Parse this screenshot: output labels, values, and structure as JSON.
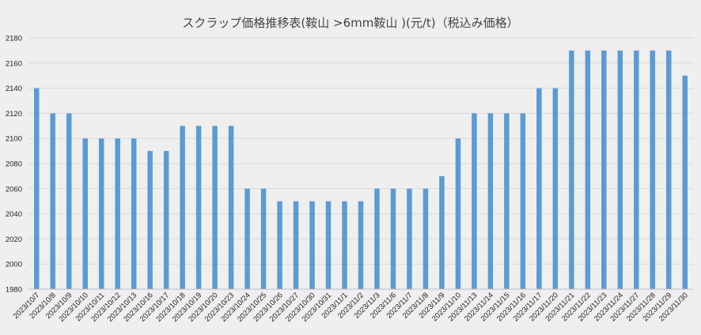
{
  "chart_data": {
    "type": "bar",
    "title": "スクラップ価格推移表(鞍山 >6mm鞍山 )(元/t)（税込み価格）",
    "xlabel": "",
    "ylabel": "",
    "ylim": [
      1980,
      2180
    ],
    "yticks": [
      1980,
      2000,
      2020,
      2040,
      2060,
      2080,
      2100,
      2120,
      2140,
      2160,
      2180
    ],
    "grid": true,
    "legend": "none",
    "bar_color": "#5b9bd5",
    "grid_color": "#d9d9d9",
    "categories": [
      "2023/10/7",
      "2023/10/8",
      "2023/10/9",
      "2023/10/10",
      "2023/10/11",
      "2023/10/12",
      "2023/10/13",
      "2023/10/16",
      "2023/10/17",
      "2023/10/18",
      "2023/10/19",
      "2023/10/20",
      "2023/10/23",
      "2023/10/24",
      "2023/10/25",
      "2023/10/26",
      "2023/10/27",
      "2023/10/30",
      "2023/10/31",
      "2023/11/1",
      "2023/11/2",
      "2023/11/3",
      "2023/11/6",
      "2023/11/7",
      "2023/11/8",
      "2023/11/9",
      "2023/11/10",
      "2023/11/13",
      "2023/11/14",
      "2023/11/15",
      "2023/11/16",
      "2023/11/17",
      "2023/11/20",
      "2023/11/21",
      "2023/11/22",
      "2023/11/23",
      "2023/11/24",
      "2023/11/27",
      "2023/11/28",
      "2023/11/29",
      "2023/11/30"
    ],
    "values": [
      2140,
      2120,
      2120,
      2100,
      2100,
      2100,
      2100,
      2090,
      2090,
      2110,
      2110,
      2110,
      2110,
      2060,
      2060,
      2050,
      2050,
      2050,
      2050,
      2050,
      2050,
      2060,
      2060,
      2060,
      2060,
      2070,
      2100,
      2120,
      2120,
      2120,
      2120,
      2140,
      2140,
      2170,
      2170,
      2170,
      2170,
      2170,
      2170,
      2170,
      2150
    ]
  }
}
